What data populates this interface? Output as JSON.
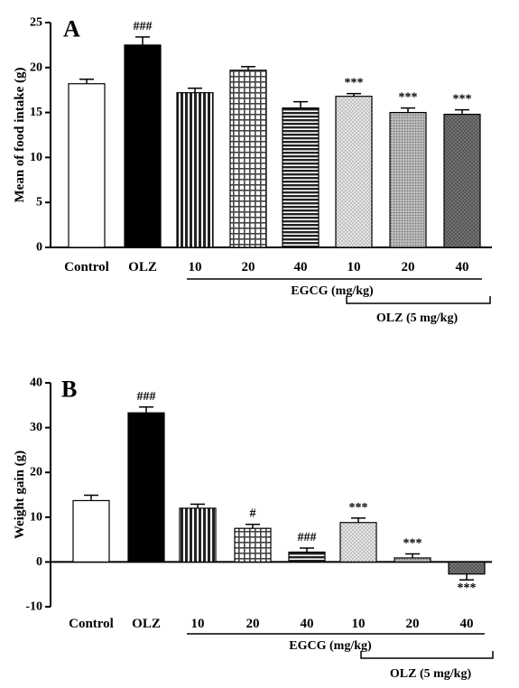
{
  "chart_data": [
    {
      "type": "bar",
      "panel_label": "A",
      "ylabel": "Mean of food intake (g)",
      "ylim": [
        0,
        25
      ],
      "yticks": [
        0,
        5,
        10,
        15,
        20,
        25
      ],
      "categories": [
        "Control",
        "OLZ",
        "10",
        "20",
        "40",
        "10",
        "20",
        "40"
      ],
      "values": [
        18.2,
        22.5,
        17.2,
        19.7,
        15.5,
        16.8,
        15.0,
        14.8
      ],
      "errors": [
        0.5,
        0.9,
        0.5,
        0.4,
        0.7,
        0.3,
        0.5,
        0.5
      ],
      "annotations": [
        "",
        "###",
        "",
        "",
        "",
        "***",
        "***",
        "***"
      ],
      "patterns": [
        "white",
        "black",
        "vstripes",
        "checker",
        "hstripes",
        "dots",
        "finedots",
        "darkdots"
      ],
      "group_labels": {
        "egcg": "EGCG (mg/kg)",
        "olz": "OLZ (5 mg/kg)"
      }
    },
    {
      "type": "bar",
      "panel_label": "B",
      "ylabel": "Weight gain (g)",
      "ylim": [
        -10,
        40
      ],
      "yticks": [
        -10,
        0,
        10,
        20,
        30,
        40
      ],
      "categories": [
        "Control",
        "OLZ",
        "10",
        "20",
        "40",
        "10",
        "20",
        "40"
      ],
      "values": [
        13.7,
        33.3,
        12.0,
        7.5,
        2.2,
        8.8,
        0.9,
        -2.7
      ],
      "errors": [
        1.2,
        1.3,
        0.9,
        0.9,
        0.9,
        1.0,
        0.9,
        1.3
      ],
      "annotations": [
        "",
        "###",
        "",
        "#",
        "###",
        "***",
        "***",
        "***"
      ],
      "patterns": [
        "white",
        "black",
        "vstripes",
        "checker",
        "hstripes",
        "dots",
        "finedots",
        "darkdots"
      ],
      "group_labels": {
        "egcg": "EGCG (mg/kg)",
        "olz": "OLZ (5 mg/kg)"
      }
    }
  ]
}
